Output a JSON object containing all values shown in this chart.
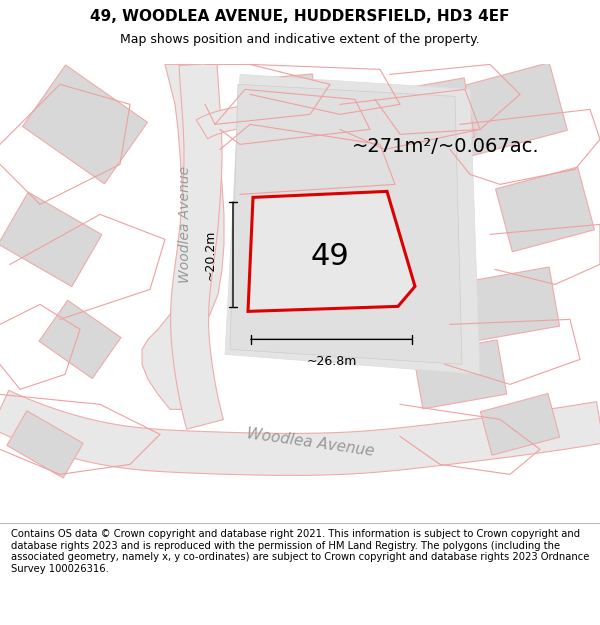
{
  "title": "49, WOODLEA AVENUE, HUDDERSFIELD, HD3 4EF",
  "subtitle": "Map shows position and indicative extent of the property.",
  "footer": "Contains OS data © Crown copyright and database right 2021. This information is subject to Crown copyright and database rights 2023 and is reproduced with the permission of HM Land Registry. The polygons (including the associated geometry, namely x, y co-ordinates) are subject to Crown copyright and database rights 2023 Ordnance Survey 100026316.",
  "area_label": "~271m²/~0.067ac.",
  "number_label": "49",
  "width_label": "~26.8m",
  "height_label": "~20.2m",
  "road_label_side": "Woodlea Avenue",
  "road_label_bottom": "Woodlea Avenue",
  "map_bg": "#ffffff",
  "road_fill": "#e8e8e8",
  "road_edge": "#f0aaaa",
  "block_fill": "#d8d8d8",
  "block_edge": "#f0aaaa",
  "highlight_edge": "#dd0000",
  "highlight_fill": "#e8e8e8",
  "footer_bg": "#f0f0f0",
  "title_fontsize": 11,
  "subtitle_fontsize": 9,
  "footer_fontsize": 7.2,
  "area_fontsize": 14,
  "number_fontsize": 22,
  "dim_fontsize": 9,
  "road_fontsize": 10
}
